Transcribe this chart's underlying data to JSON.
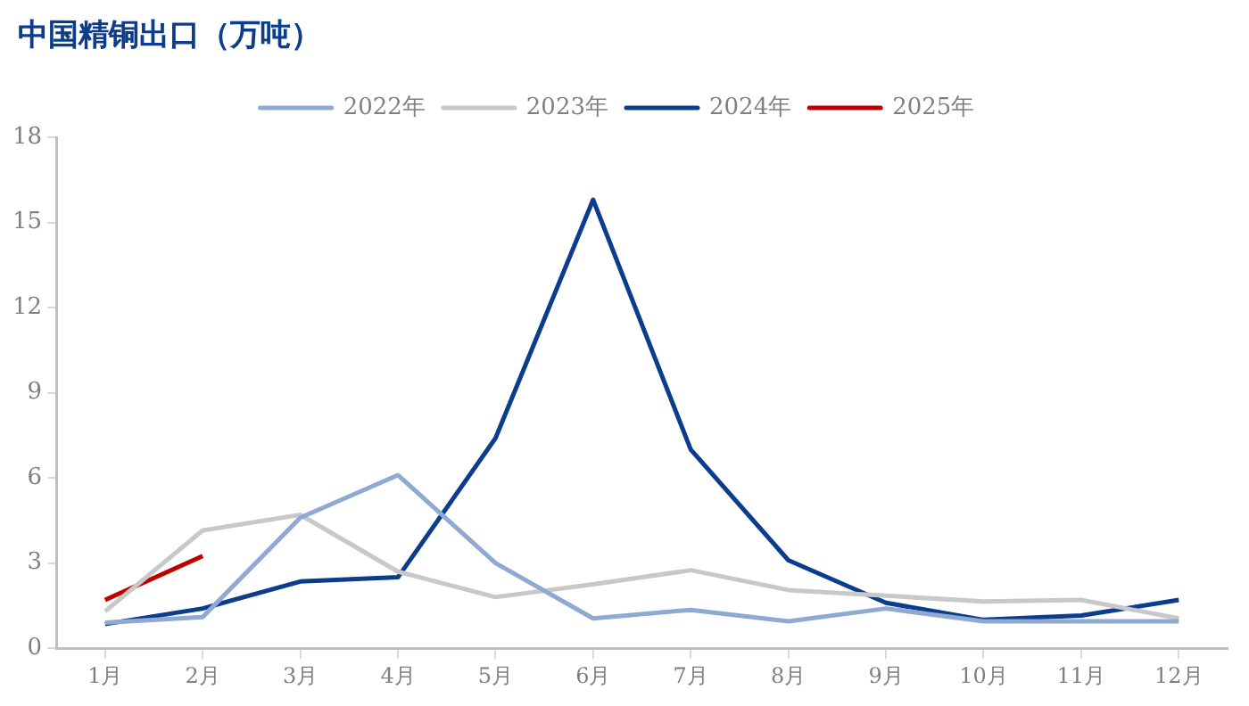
{
  "chart_data": {
    "type": "line",
    "title": "中国精铜出口（万吨）",
    "categories": [
      "1月",
      "2月",
      "3月",
      "4月",
      "5月",
      "6月",
      "7月",
      "8月",
      "9月",
      "10月",
      "11月",
      "12月"
    ],
    "series": [
      {
        "name": "2022年",
        "color": "#8ea9d2",
        "values": [
          0.9,
          1.1,
          4.6,
          6.1,
          3.0,
          1.05,
          1.35,
          0.95,
          1.4,
          0.95,
          0.95,
          0.95
        ]
      },
      {
        "name": "2023年",
        "color": "#c8c8c8",
        "values": [
          1.3,
          4.15,
          4.7,
          2.7,
          1.8,
          2.25,
          2.75,
          2.05,
          1.85,
          1.65,
          1.7,
          1.05
        ]
      },
      {
        "name": "2024年",
        "color": "#0b3d8c",
        "values": [
          0.85,
          1.4,
          2.35,
          2.5,
          7.4,
          15.8,
          7.0,
          3.1,
          1.6,
          1.0,
          1.15,
          1.7
        ]
      },
      {
        "name": "2025年",
        "color": "#c00000",
        "values": [
          1.7,
          3.25,
          null,
          null,
          null,
          null,
          null,
          null,
          null,
          null,
          null,
          null
        ]
      }
    ],
    "ylim": [
      0,
      18
    ],
    "yticks": [
      0,
      3,
      6,
      9,
      12,
      15,
      18
    ],
    "grid": false,
    "legend": "top",
    "marker": "none",
    "line_style": "solid"
  }
}
